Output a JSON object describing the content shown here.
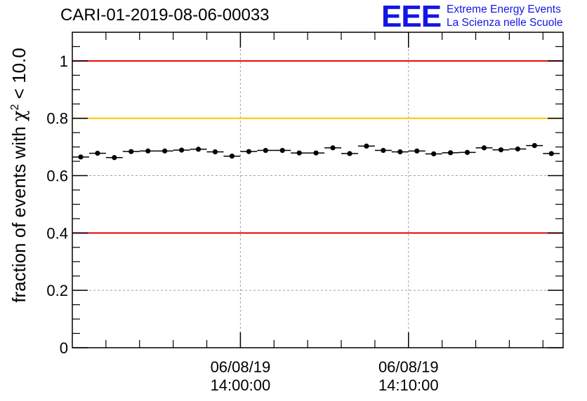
{
  "header": {
    "run_title": "CARI-01-2019-08-06-00033",
    "logo_mark": "EEE",
    "logo_line1": "Extreme Energy Events",
    "logo_line2": "La Scienza nelle Scuole"
  },
  "colors": {
    "upper_limit": "#e60000",
    "warning": "#ffc300",
    "lower_limit": "#e60000",
    "points": "#000000",
    "grid": "#a0a0a0",
    "brand": "#1515e6"
  },
  "chart_data": {
    "type": "scatter",
    "title": "CARI-01-2019-08-06-00033",
    "xlabel": "",
    "ylabel": "fraction of events with χ² < 10.0",
    "ylabel_parts": {
      "prefix": "fraction of events with ",
      "symbol": "χ",
      "sup": "2",
      "suffix": " < 10.0"
    },
    "x_unit": "minutes from 06/08/19 13:50:00",
    "xlim": [
      0,
      29.2
    ],
    "ylim": [
      0,
      1.1
    ],
    "y_ticks": [
      0,
      0.2,
      0.4,
      0.6,
      0.8,
      1
    ],
    "y_tick_labels": [
      "0",
      "0.2",
      "0.4",
      "0.6",
      "0.8",
      "1"
    ],
    "x_major_ticks": [
      {
        "x": 10,
        "date": "06/08/19",
        "time": "14:00:00"
      },
      {
        "x": 20,
        "date": "06/08/19",
        "time": "14:10:00"
      }
    ],
    "x_minor_ticks": [
      2,
      4,
      6,
      8,
      12,
      14,
      16,
      18,
      22,
      24,
      26,
      28
    ],
    "grid": true,
    "bin_width": 1,
    "reference_lines": [
      {
        "name": "upper-limit",
        "y": 1.0,
        "color": "#e60000"
      },
      {
        "name": "warning-threshold",
        "y": 0.8,
        "color": "#ffc300"
      },
      {
        "name": "lower-limit",
        "y": 0.4,
        "color": "#e60000"
      }
    ],
    "x": [
      0.5,
      1.5,
      2.5,
      3.5,
      4.5,
      5.5,
      6.5,
      7.5,
      8.5,
      9.5,
      10.5,
      11.5,
      12.5,
      13.5,
      14.5,
      15.5,
      16.5,
      17.5,
      18.5,
      19.5,
      20.5,
      21.5,
      22.5,
      23.5,
      24.5,
      25.5,
      26.5,
      27.5,
      28.5
    ],
    "values": [
      0.665,
      0.678,
      0.663,
      0.684,
      0.686,
      0.686,
      0.689,
      0.692,
      0.683,
      0.668,
      0.684,
      0.688,
      0.688,
      0.679,
      0.679,
      0.697,
      0.677,
      0.703,
      0.688,
      0.683,
      0.686,
      0.676,
      0.68,
      0.681,
      0.697,
      0.69,
      0.693,
      0.705,
      0.677
    ],
    "errors": [
      0.007,
      0.007,
      0.007,
      0.007,
      0.007,
      0.007,
      0.007,
      0.007,
      0.007,
      0.007,
      0.007,
      0.007,
      0.007,
      0.007,
      0.007,
      0.007,
      0.007,
      0.007,
      0.007,
      0.007,
      0.007,
      0.007,
      0.007,
      0.007,
      0.007,
      0.007,
      0.007,
      0.007,
      0.007
    ]
  }
}
